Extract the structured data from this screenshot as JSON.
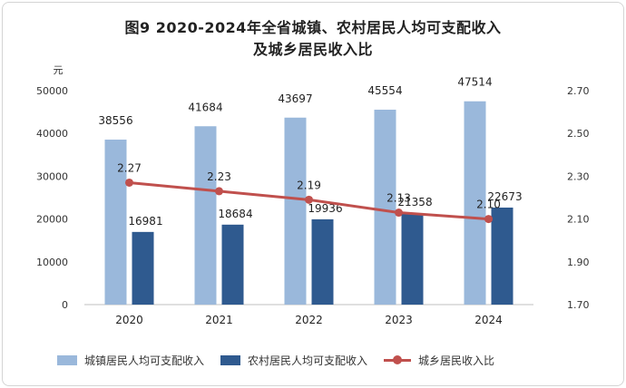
{
  "chart_data": {
    "type": "bar",
    "title": "图9 2020-2024年全省城镇、农村居民人均可支配收入",
    "subtitle": "及城乡居民收入比",
    "categories": [
      "2020",
      "2021",
      "2022",
      "2023",
      "2024"
    ],
    "y_unit": "元",
    "ylim": [
      0,
      50000
    ],
    "y_ticks": [
      "0",
      "10000",
      "20000",
      "30000",
      "40000",
      "50000"
    ],
    "y2lim": [
      1.7,
      2.7
    ],
    "y2_ticks": [
      "1.70",
      "1.90",
      "2.10",
      "2.30",
      "2.50",
      "2.70"
    ],
    "series": [
      {
        "name": "城镇居民人均可支配收入",
        "type": "bar",
        "axis": "left",
        "color": "#9ab8db",
        "values": [
          38556,
          41684,
          43697,
          45554,
          47514
        ]
      },
      {
        "name": "农村居民人均可支配收入",
        "type": "bar",
        "axis": "left",
        "color": "#2f5a8f",
        "values": [
          16981,
          18684,
          19936,
          21358,
          22673
        ]
      },
      {
        "name": "城乡居民收入比",
        "type": "line",
        "axis": "right",
        "color": "#c0504d",
        "values": [
          2.27,
          2.23,
          2.19,
          2.13,
          2.1
        ]
      }
    ],
    "data_labels": {
      "bars": [
        "38556",
        "41684",
        "43697",
        "45554",
        "47514",
        "16981",
        "18684",
        "19936",
        "21358",
        "22673"
      ],
      "line": [
        "2.27",
        "2.23",
        "2.19",
        "2.13",
        "2.10"
      ]
    },
    "grid": false,
    "legend": "bottom"
  }
}
